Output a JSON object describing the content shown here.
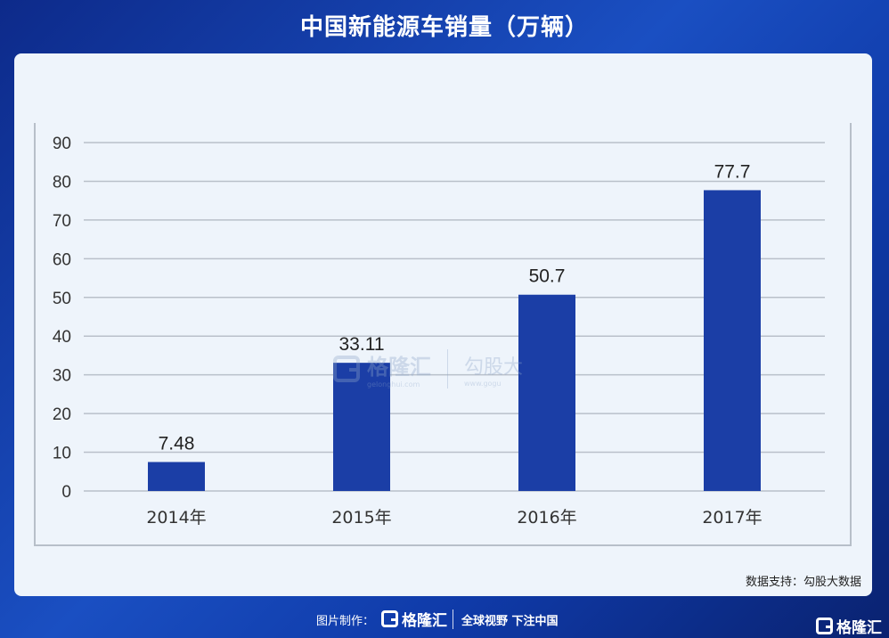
{
  "title": "中国新能源车销量（万辆）",
  "source": "数据支持：勾股大数据",
  "watermark": {
    "brand": "格隆汇",
    "brand_url": "gelonghui.com",
    "partner": "勾股大",
    "partner_url": "www.gogu"
  },
  "footer": {
    "made_by": "图片制作：",
    "brand": "格隆汇",
    "slogan": "全球视野 下注中国"
  },
  "corner_brand": "格隆汇",
  "colors": {
    "bar": "#1b3ea6",
    "grid": "#b9c0ca",
    "background_card": "#eef4fb"
  },
  "chart_data": {
    "type": "bar",
    "title": "中国新能源车销量（万辆）",
    "categories": [
      "2014年",
      "2015年",
      "2016年",
      "2017年"
    ],
    "values": [
      7.48,
      33.11,
      50.7,
      77.7
    ],
    "data_labels": [
      "7.48",
      "33.11",
      "50.7",
      "77.7"
    ],
    "yticks": [
      "0",
      "10",
      "20",
      "30",
      "40",
      "50",
      "60",
      "70",
      "80",
      "90"
    ],
    "ylim": [
      0,
      90
    ],
    "grid": true,
    "legend": "none"
  }
}
